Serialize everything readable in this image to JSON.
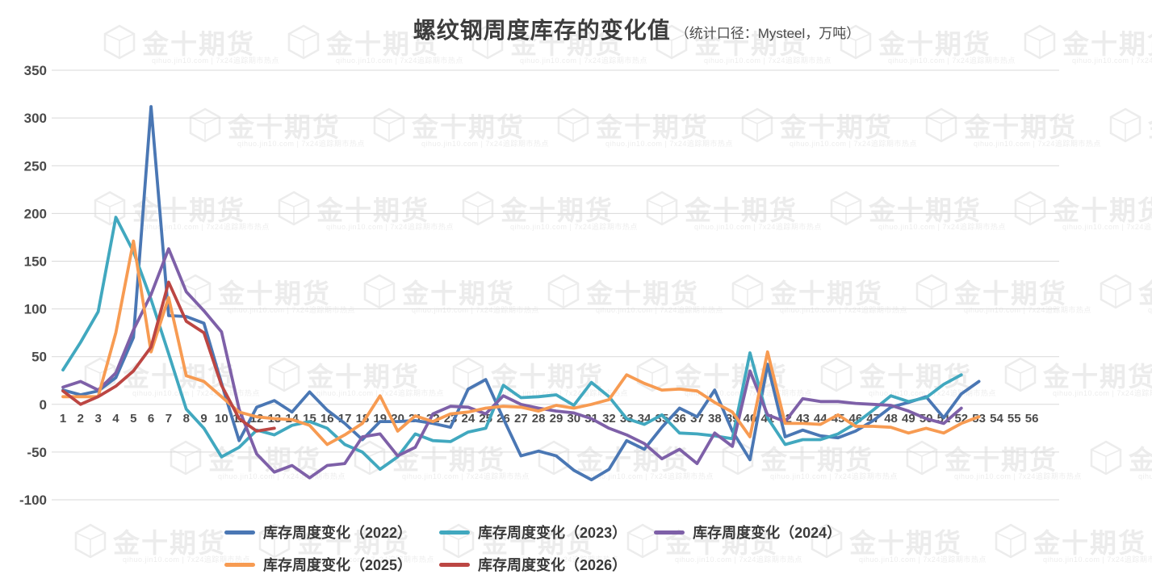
{
  "title": {
    "text": "螺纹钢周度库存的变化值",
    "subtitle": "（统计口径：Mysteel，万吨）"
  },
  "watermark": {
    "brand": "金十期货",
    "subtext": "qihuo.jin10.com | 7x24追踪期市热点"
  },
  "colors": {
    "grid": "#d9d9d9",
    "axis_text": "#4a4a4a",
    "title_text": "#3d3d3d"
  },
  "chart_data": {
    "type": "line",
    "x": [
      1,
      2,
      3,
      4,
      5,
      6,
      7,
      8,
      9,
      10,
      11,
      12,
      13,
      14,
      15,
      16,
      17,
      18,
      19,
      20,
      21,
      22,
      23,
      24,
      25,
      26,
      27,
      28,
      29,
      30,
      31,
      32,
      33,
      34,
      35,
      36,
      37,
      38,
      39,
      40,
      41,
      42,
      43,
      44,
      45,
      46,
      47,
      48,
      49,
      50,
      51,
      52,
      53,
      54,
      55,
      56
    ],
    "xlabel": "",
    "ylabel": "",
    "ylim": [
      -100,
      350
    ],
    "y_ticks": [
      350,
      300,
      250,
      200,
      150,
      100,
      50,
      0,
      -50,
      -100
    ],
    "grid": true,
    "legend_position": "bottom",
    "series": [
      {
        "name": "库存周度变化（2022）",
        "color": "#4A77B4",
        "values": [
          15,
          10,
          14,
          28,
          70,
          312,
          93,
          92,
          85,
          22,
          -38,
          -3,
          4,
          -8,
          13,
          -6,
          -20,
          -37,
          -18,
          -18,
          -17,
          -20,
          -24,
          16,
          26,
          -15,
          -54,
          -49,
          -54,
          -69,
          -79,
          -68,
          -38,
          -47,
          -24,
          -4,
          -13,
          15,
          -28,
          -58,
          42,
          -34,
          -27,
          -33,
          -35,
          -28,
          -17,
          -3,
          2,
          8,
          -14,
          11,
          24,
          null,
          null,
          null
        ]
      },
      {
        "name": "库存周度变化（2023）",
        "color": "#41A8BF",
        "values": [
          36,
          65,
          97,
          196,
          160,
          110,
          53,
          -5,
          -25,
          -55,
          -45,
          -27,
          -32,
          -22,
          -18,
          -25,
          -42,
          -50,
          -68,
          -55,
          -31,
          -38,
          -39,
          -29,
          -25,
          20,
          7,
          8,
          10,
          -1,
          23,
          8,
          -15,
          -21,
          -11,
          -30,
          -31,
          -33,
          -36,
          54,
          -14,
          -42,
          -37,
          -37,
          -31,
          -20,
          -6,
          9,
          3,
          7,
          21,
          31,
          null,
          null,
          null,
          null
        ]
      },
      {
        "name": "库存周度变化（2024）",
        "color": "#7E60A8",
        "values": [
          18,
          24,
          15,
          33,
          78,
          115,
          163,
          118,
          98,
          76,
          -5,
          -52,
          -71,
          -64,
          -77,
          -64,
          -62,
          -34,
          -31,
          -54,
          -45,
          -10,
          -2,
          -3,
          -10,
          9,
          0,
          -4,
          -7,
          -9,
          -15,
          -25,
          -32,
          -41,
          -57,
          -47,
          -62,
          -30,
          -44,
          35,
          -11,
          -18,
          6,
          3,
          3,
          1,
          0,
          -1,
          -7,
          -15,
          -20,
          -4,
          null,
          null,
          null,
          null
        ]
      },
      {
        "name": "库存周度变化（2025）",
        "color": "#F79B52",
        "values": [
          8,
          8,
          8,
          75,
          171,
          55,
          112,
          30,
          24,
          8,
          -8,
          -13,
          -15,
          -16,
          -22,
          -42,
          -32,
          -20,
          9,
          -28,
          -12,
          -18,
          -10,
          -8,
          -4,
          -2,
          -3,
          -7,
          -1,
          -4,
          0,
          5,
          31,
          22,
          15,
          16,
          14,
          2,
          -8,
          -34,
          55,
          -20,
          -20,
          -21,
          -11,
          -23,
          -23,
          -24,
          -30,
          -25,
          -30,
          -20,
          -13,
          null,
          null,
          null
        ]
      },
      {
        "name": "库存周度变化（2026）",
        "color": "#BC4643",
        "values": [
          14,
          0,
          8,
          19,
          35,
          60,
          128,
          87,
          75,
          20,
          -15,
          -28,
          -25,
          null,
          null,
          null,
          null,
          null,
          null,
          null,
          null,
          null,
          null,
          null,
          null,
          null,
          null,
          null,
          null,
          null,
          null,
          null,
          null,
          null,
          null,
          null,
          null,
          null,
          null,
          null,
          null,
          null,
          null,
          null,
          null,
          null,
          null,
          null,
          null,
          null,
          null,
          null,
          null,
          null,
          null,
          null
        ]
      }
    ]
  }
}
